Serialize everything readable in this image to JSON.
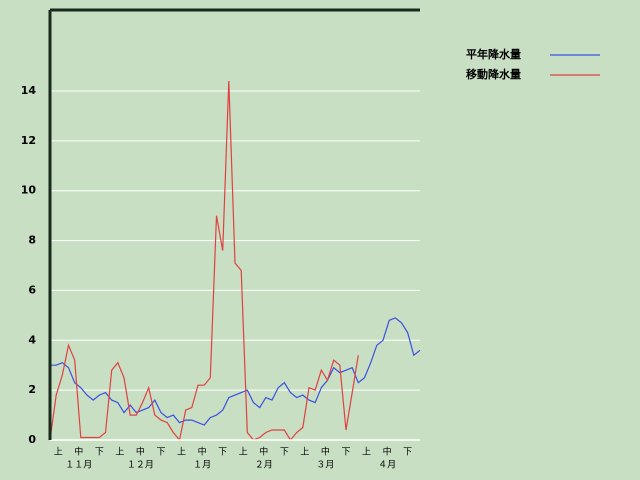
{
  "chart_data": {
    "type": "line",
    "x": [
      0,
      3,
      6,
      9,
      12,
      15,
      18,
      21,
      24,
      27,
      30,
      33,
      36,
      39,
      42,
      45,
      48,
      51,
      54,
      57,
      60,
      63,
      66,
      69,
      72,
      75,
      78,
      81,
      84,
      87,
      90,
      93,
      96,
      99,
      102,
      105,
      108,
      111,
      114,
      117,
      120,
      123,
      126,
      129,
      132,
      135,
      138,
      141,
      144,
      147,
      150,
      153,
      156,
      159,
      162,
      165,
      168,
      171,
      174,
      177,
      180
    ],
    "series": [
      {
        "name": "平年降水量",
        "color": "#3a4fe0",
        "values": [
          3.0,
          3.0,
          3.1,
          2.9,
          2.3,
          2.1,
          1.8,
          1.6,
          1.8,
          1.9,
          1.6,
          1.5,
          1.1,
          1.4,
          1.1,
          1.2,
          1.3,
          1.6,
          1.1,
          0.9,
          1.0,
          0.7,
          0.8,
          0.8,
          0.7,
          0.6,
          0.9,
          1.0,
          1.2,
          1.7,
          1.8,
          1.9,
          2.0,
          1.5,
          1.3,
          1.7,
          1.6,
          2.1,
          2.3,
          1.9,
          1.7,
          1.8,
          1.6,
          1.5,
          2.1,
          2.4,
          2.9,
          2.7,
          2.8,
          2.9,
          2.3,
          2.5,
          3.1,
          3.8,
          4.0,
          4.8,
          4.9,
          4.7,
          4.3,
          3.4,
          3.6
        ]
      },
      {
        "name": "移動降水量",
        "color": "#e04040",
        "values": [
          0,
          1.8,
          2.6,
          3.8,
          3.2,
          0.1,
          0.1,
          0.1,
          0.1,
          0.3,
          2.8,
          3.1,
          2.5,
          1.0,
          1.0,
          1.5,
          2.1,
          1.0,
          0.8,
          0.7,
          0.3,
          0.0,
          1.2,
          1.3,
          2.2,
          2.2,
          2.5,
          9.0,
          7.6,
          14.4,
          7.1,
          6.8,
          0.3,
          0.0,
          0.1,
          0.3,
          0.4,
          0.4,
          0.4,
          0.0,
          0.3,
          0.5,
          2.1,
          2.0,
          2.8,
          2.4,
          3.2,
          3.0,
          0.4,
          1.9,
          3.4,
          null,
          null,
          null,
          null,
          null,
          null,
          null,
          null,
          null,
          null
        ]
      }
    ],
    "xlim": [
      0,
      180
    ],
    "xticks": [
      {
        "value": 4,
        "label": "上"
      },
      {
        "value": 14,
        "label": "中"
      },
      {
        "value": 24,
        "label": "下"
      },
      {
        "value": 34,
        "label": "上"
      },
      {
        "value": 44,
        "label": "中"
      },
      {
        "value": 54,
        "label": "下"
      },
      {
        "value": 64,
        "label": "上"
      },
      {
        "value": 74,
        "label": "中"
      },
      {
        "value": 84,
        "label": "下"
      },
      {
        "value": 94,
        "label": "上"
      },
      {
        "value": 104,
        "label": "中"
      },
      {
        "value": 114,
        "label": "下"
      },
      {
        "value": 124,
        "label": "上"
      },
      {
        "value": 134,
        "label": "中"
      },
      {
        "value": 144,
        "label": "下"
      },
      {
        "value": 154,
        "label": "上"
      },
      {
        "value": 164,
        "label": "中"
      },
      {
        "value": 174,
        "label": "下"
      }
    ],
    "month_labels": [
      {
        "value": 14,
        "label": "１１月"
      },
      {
        "value": 44,
        "label": "１２月"
      },
      {
        "value": 74,
        "label": "１月"
      },
      {
        "value": 104,
        "label": "２月"
      },
      {
        "value": 134,
        "label": "３月"
      },
      {
        "value": 164,
        "label": "４月"
      }
    ],
    "ylim": [
      0,
      17.25
    ],
    "yticks": [
      0,
      2,
      4,
      6,
      8,
      10,
      12,
      14
    ],
    "grid": true,
    "legend": "right"
  }
}
